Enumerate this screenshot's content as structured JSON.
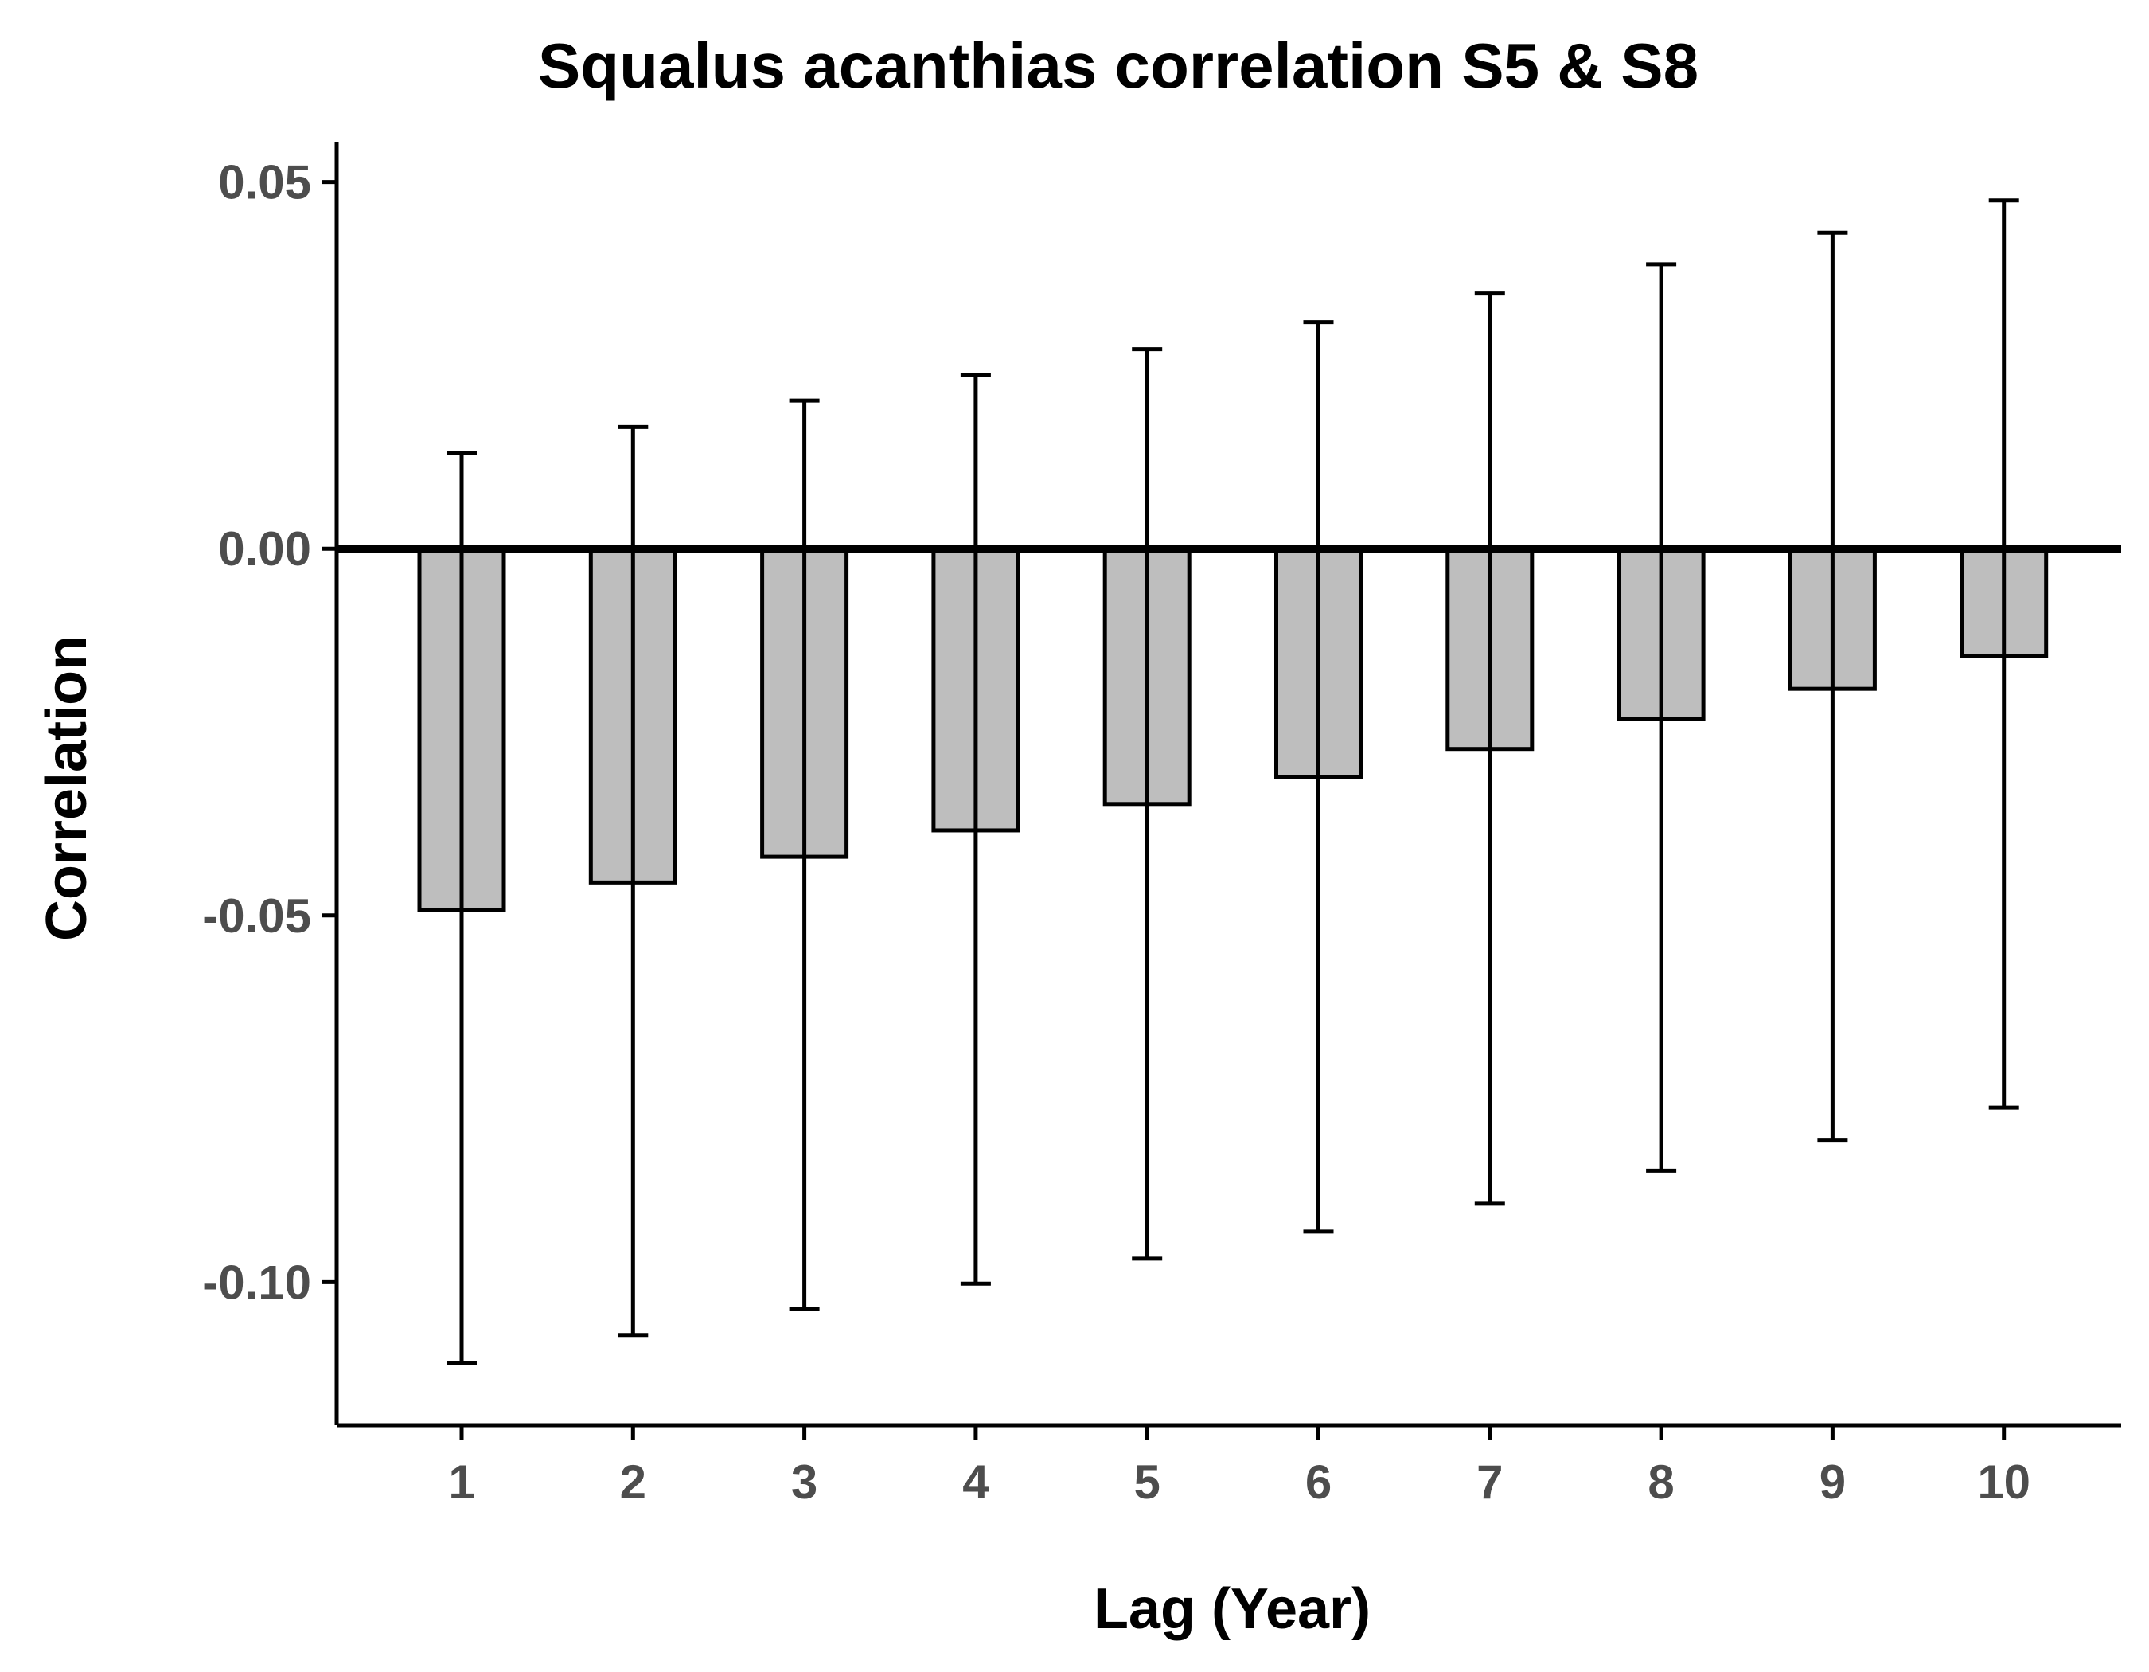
{
  "chart_data": {
    "type": "bar",
    "title": "Squalus acanthias correlation S5 & S8",
    "xlabel": "Lag (Year)",
    "ylabel": "Correlation",
    "categories": [
      "1",
      "2",
      "3",
      "4",
      "5",
      "6",
      "7",
      "8",
      "9",
      "10"
    ],
    "values": [
      -0.0493,
      -0.0455,
      -0.042,
      -0.0384,
      -0.0348,
      -0.0311,
      -0.0273,
      -0.0232,
      -0.0191,
      -0.0146
    ],
    "error_upper": [
      0.013,
      0.0166,
      0.0202,
      0.0237,
      0.0272,
      0.0309,
      0.0348,
      0.0388,
      0.0431,
      0.0475
    ],
    "error_lower": [
      -0.111,
      -0.1072,
      -0.1037,
      -0.1002,
      -0.0968,
      -0.0931,
      -0.0893,
      -0.0848,
      -0.0806,
      -0.0762
    ],
    "ylim": [
      -0.1195,
      0.0555
    ],
    "yticks": [
      "0.05",
      "0.00",
      "-0.05",
      "-0.10"
    ],
    "ytick_values": [
      0.05,
      0.0,
      -0.05,
      -0.1
    ],
    "grid": false,
    "colors": {
      "bar_fill": "#bebebe",
      "bar_stroke": "#000000",
      "tick_text": "#4d4d4d"
    }
  }
}
